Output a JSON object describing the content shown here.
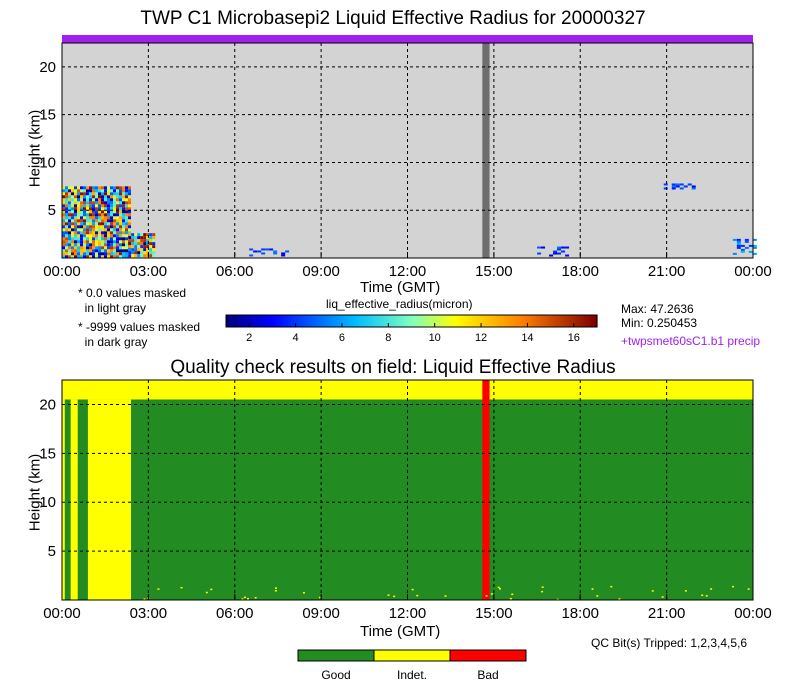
{
  "colors": {
    "plot_bg": "#d3d3d3",
    "flag_bar": "#a020f0",
    "masked_dark": "#6e6e6e",
    "qc_good": "#228b22",
    "qc_indet": "#ffff00",
    "qc_bad": "#ff0000"
  },
  "icons": [],
  "chart_data": [
    {
      "type": "heatmap",
      "title": "TWP C1 Microbasepi2 Liquid Effective Radius for 20000327",
      "xlabel": "Time (GMT)",
      "ylabel": "Height (km)",
      "x_ticks": [
        "00:00",
        "03:00",
        "06:00",
        "09:00",
        "12:00",
        "15:00",
        "18:00",
        "21:00",
        "00:00"
      ],
      "y_ticks": [
        5,
        10,
        15,
        20
      ],
      "xlim_hours": [
        0,
        24
      ],
      "ylim_km": [
        0,
        22.5
      ],
      "grid": true,
      "colorbar": {
        "label": "liq_effective_radius(micron)",
        "ticks": [
          2,
          4,
          6,
          8,
          10,
          12,
          14,
          16
        ],
        "range": [
          1,
          17
        ]
      },
      "notes": [
        "* 0.0 values masked\n  in light gray",
        "* -9999 values masked\n  in dark gray"
      ],
      "stats": {
        "max": "Max: 47.2636",
        "min": "Min: 0.250453"
      },
      "flag_label": "+twpsmet60sC1.b1 precip",
      "dark_masked_band_hours": [
        14.6,
        14.85
      ],
      "data_regions": [
        {
          "x_hours": [
            0.0,
            2.3
          ],
          "y_km": [
            0.1,
            7.5
          ],
          "desc": "dense multicolor"
        },
        {
          "x_hours": [
            2.3,
            3.2
          ],
          "y_km": [
            0.2,
            2.6
          ],
          "desc": "dense multicolor"
        },
        {
          "x_hours": [
            6.5,
            7.8
          ],
          "y_km": [
            0.2,
            1.0
          ],
          "desc": "sparse blue"
        },
        {
          "x_hours": [
            16.5,
            17.5
          ],
          "y_km": [
            0.3,
            1.2
          ],
          "desc": "sparse blue"
        },
        {
          "x_hours": [
            20.9,
            21.9
          ],
          "y_km": [
            7.3,
            7.8
          ],
          "desc": "thin blue layer"
        },
        {
          "x_hours": [
            23.3,
            24.0
          ],
          "y_km": [
            0.5,
            2.0
          ],
          "desc": "blue-cyan"
        }
      ]
    },
    {
      "type": "heatmap",
      "title": "Quality check results on field: Liquid Effective Radius",
      "xlabel": "Time (GMT)",
      "ylabel": "Height (km)",
      "x_ticks": [
        "00:00",
        "03:00",
        "06:00",
        "09:00",
        "12:00",
        "15:00",
        "18:00",
        "21:00",
        "00:00"
      ],
      "y_ticks": [
        5,
        10,
        15,
        20
      ],
      "xlim_hours": [
        0,
        24
      ],
      "ylim_km": [
        0,
        22.5
      ],
      "grid": true,
      "legend": [
        "Good",
        "Indet.",
        "Bad"
      ],
      "qc_bits": "QC Bit(s) Tripped: 1,2,3,4,5,6",
      "regions": [
        {
          "x_hours": [
            0,
            24
          ],
          "y_km": [
            20.5,
            22.5
          ],
          "class": "Indet."
        },
        {
          "x_hours": [
            0,
            0.1
          ],
          "y_km": [
            0,
            20.5
          ],
          "class": "Indet."
        },
        {
          "x_hours": [
            0.1,
            0.3
          ],
          "y_km": [
            0,
            20.5
          ],
          "class": "Good"
        },
        {
          "x_hours": [
            0.3,
            0.55
          ],
          "y_km": [
            0,
            20.5
          ],
          "class": "Indet."
        },
        {
          "x_hours": [
            0.55,
            0.9
          ],
          "y_km": [
            0,
            20.5
          ],
          "class": "Good"
        },
        {
          "x_hours": [
            0.9,
            2.4
          ],
          "y_km": [
            0,
            20.5
          ],
          "class": "Indet."
        },
        {
          "x_hours": [
            2.4,
            24
          ],
          "y_km": [
            0,
            20.5
          ],
          "class": "Good"
        },
        {
          "x_hours": [
            14.6,
            14.85
          ],
          "y_km": [
            0,
            22.5
          ],
          "class": "Bad"
        }
      ]
    }
  ]
}
